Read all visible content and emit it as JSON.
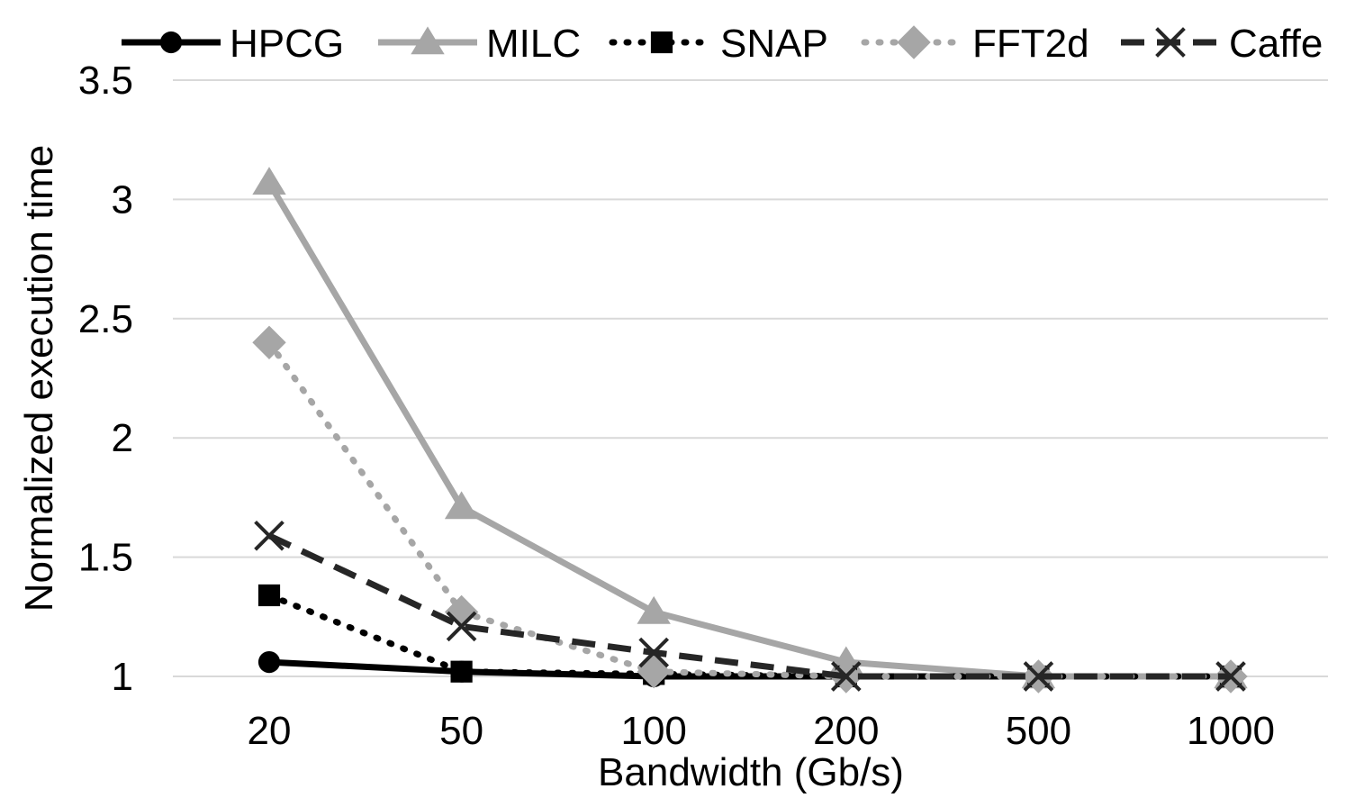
{
  "chart_data": {
    "type": "line",
    "title": "",
    "xlabel": "Bandwidth (Gb/s)",
    "ylabel": "Normalized execution time",
    "categories": [
      "20",
      "50",
      "100",
      "200",
      "500",
      "1000"
    ],
    "ylim": [
      1,
      3.5
    ],
    "yticks": [
      "1",
      "1.5",
      "2",
      "2.5",
      "3",
      "3.5"
    ],
    "ytick_values": [
      1,
      1.5,
      2,
      2.5,
      3,
      3.5
    ],
    "grid": true,
    "legend_position": "top",
    "series": [
      {
        "name": "HPCG",
        "values": [
          1.06,
          1.02,
          1.0,
          1.0,
          1.0,
          1.0
        ],
        "color": "#000000",
        "dash": "solid",
        "marker": "circle"
      },
      {
        "name": "MILC",
        "values": [
          3.07,
          1.71,
          1.27,
          1.06,
          1.0,
          1.0
        ],
        "color": "#a6a6a6",
        "dash": "solid",
        "marker": "triangle"
      },
      {
        "name": "SNAP",
        "values": [
          1.34,
          1.02,
          1.01,
          1.0,
          1.0,
          1.0
        ],
        "color": "#000000",
        "dash": "dotted",
        "marker": "square"
      },
      {
        "name": "FFT2d",
        "values": [
          2.4,
          1.27,
          1.02,
          1.0,
          1.0,
          1.0
        ],
        "color": "#a6a6a6",
        "dash": "dotted",
        "marker": "diamond"
      },
      {
        "name": "Caffe",
        "values": [
          1.59,
          1.21,
          1.1,
          1.0,
          1.0,
          1.0
        ],
        "color": "#262626",
        "dash": "dashed",
        "marker": "x"
      }
    ]
  }
}
